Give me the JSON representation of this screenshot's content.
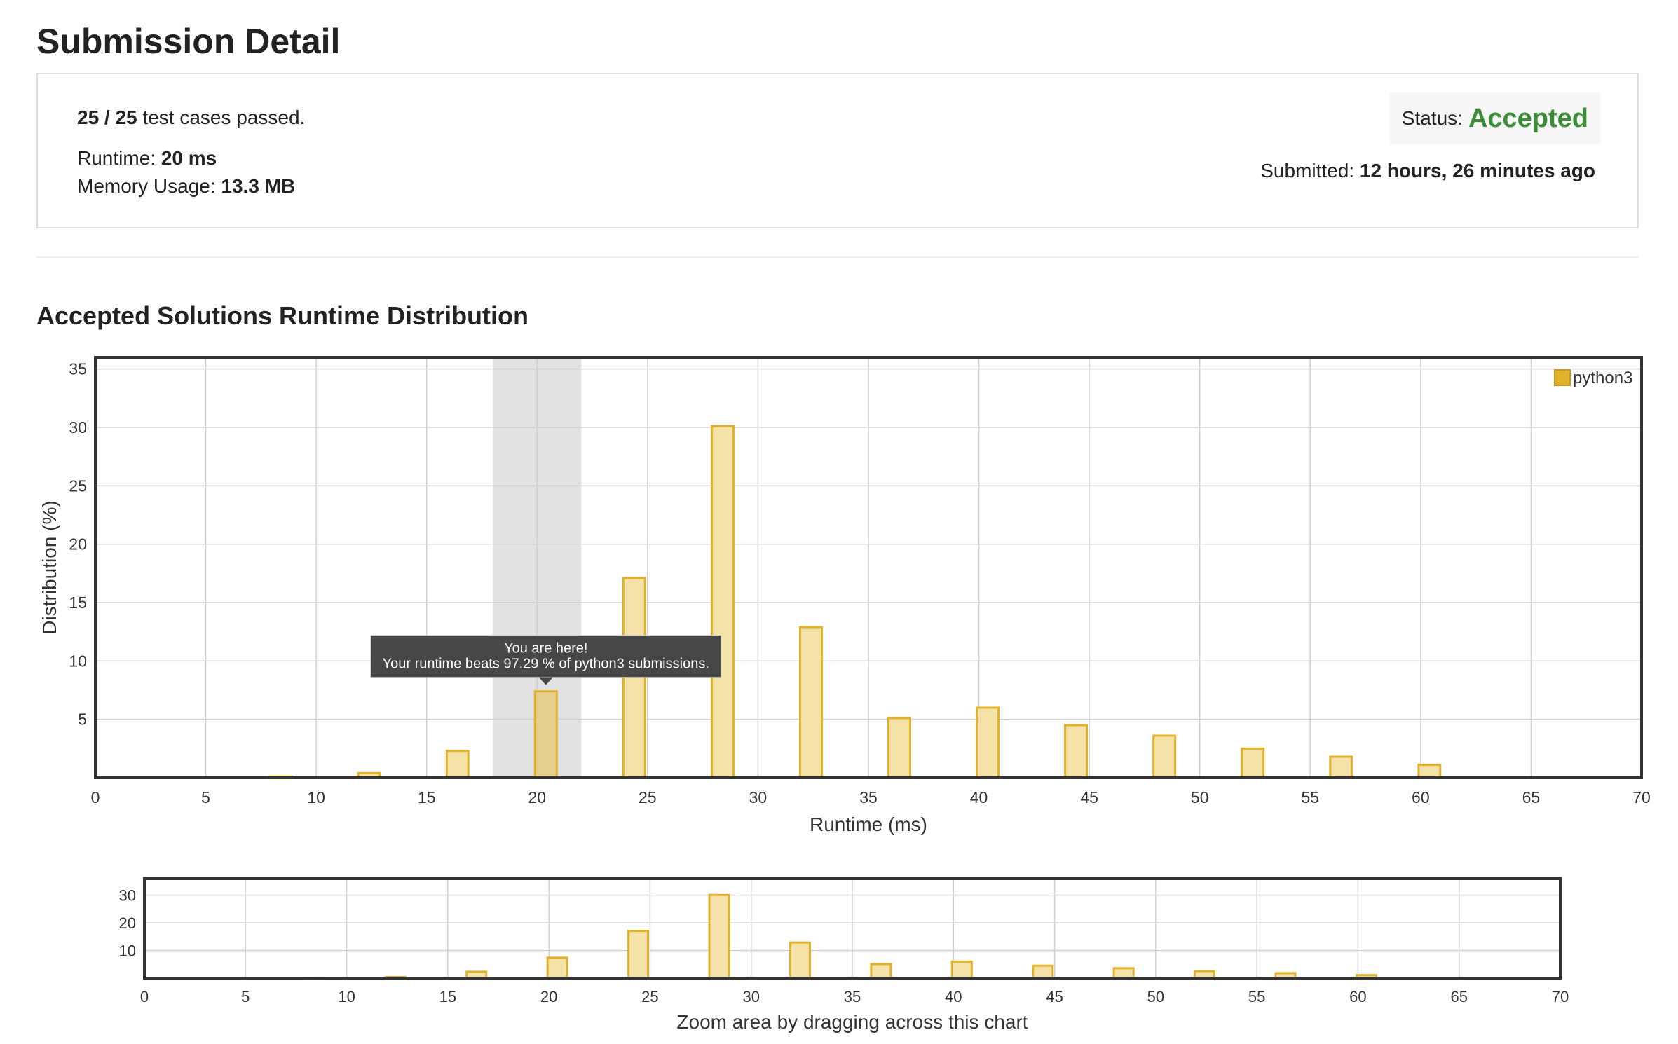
{
  "header": {
    "title": "Submission Detail"
  },
  "summary": {
    "passed_count": "25 / 25",
    "passed_text": " test cases passed.",
    "runtime_label": "Runtime: ",
    "runtime_value": "20 ms",
    "memory_label": "Memory Usage: ",
    "memory_value": "13.3 MB",
    "status_label": "Status: ",
    "status_value": "Accepted",
    "submitted_label": "Submitted: ",
    "submitted_value": "12 hours, 26 minutes ago"
  },
  "colors": {
    "accent_green": "#3c8d37",
    "bar_fill": "#f5e2a9",
    "bar_stroke": "#e2b12b",
    "highlight_fill": "#e6cf8f",
    "band": "#e2e2e2"
  },
  "section": {
    "title": "Accepted Solutions Runtime Distribution"
  },
  "tooltip": {
    "line1": "You are here!",
    "line2": "Your runtime beats 97.29 % of python3 submissions."
  },
  "chart_data": [
    {
      "type": "bar",
      "title": "",
      "xlabel": "Runtime (ms)",
      "ylabel": "Distribution (%)",
      "xlim": [
        0,
        70
      ],
      "ylim": [
        0,
        36
      ],
      "xticks": [
        0,
        5,
        10,
        15,
        20,
        25,
        30,
        35,
        40,
        45,
        50,
        55,
        60,
        65,
        70
      ],
      "yticks": [
        5,
        10,
        15,
        20,
        25,
        30,
        35
      ],
      "grid": true,
      "legend": "top-right",
      "highlight_x": 20,
      "highlight_band": [
        18,
        22
      ],
      "series": [
        {
          "name": "python3",
          "x": [
            8,
            12,
            16,
            20,
            24,
            28,
            32,
            36,
            40,
            44,
            48,
            52,
            56,
            60
          ],
          "values": [
            0.1,
            0.4,
            2.3,
            7.4,
            17.1,
            30.1,
            12.9,
            5.1,
            6.0,
            4.5,
            3.6,
            2.5,
            1.8,
            1.1
          ]
        }
      ]
    },
    {
      "type": "bar",
      "title": "",
      "xlabel": "Zoom area by dragging across this chart",
      "ylabel": "",
      "xlim": [
        0,
        70
      ],
      "ylim": [
        0,
        36
      ],
      "xticks": [
        0,
        5,
        10,
        15,
        20,
        25,
        30,
        35,
        40,
        45,
        50,
        55,
        60,
        65,
        70
      ],
      "yticks": [
        10,
        20,
        30
      ],
      "grid": true,
      "series": [
        {
          "x": [
            8,
            12,
            16,
            20,
            24,
            28,
            32,
            36,
            40,
            44,
            48,
            52,
            56,
            60
          ],
          "values": [
            0.1,
            0.4,
            2.3,
            7.4,
            17.1,
            30.1,
            12.9,
            5.1,
            6.0,
            4.5,
            3.6,
            2.5,
            1.8,
            1.1
          ]
        }
      ]
    }
  ]
}
